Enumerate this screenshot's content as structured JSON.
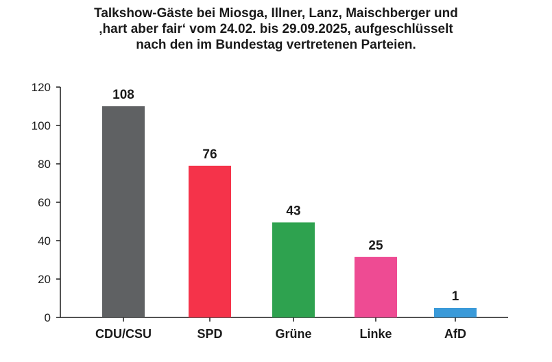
{
  "title_lines": [
    "Talkshow-Gäste bei Miosga, Illner, Lanz, Maischberger und",
    "‚hart aber fair‘ vom 24.02. bis 29.09.2025, aufgeschlüsselt",
    "nach den im Bundestag vertretenen Parteien."
  ],
  "chart_data": {
    "type": "bar",
    "title": "Talkshow-Gäste bei Miosga, Illner, Lanz, Maischberger und ‚hart aber fair‘ vom 24.02. bis 29.09.2025, aufgeschlüsselt nach den im Bundestag vertretenen Parteien.",
    "categories": [
      "CDU/CSU",
      "SPD",
      "Grüne",
      "Linke",
      "AfD"
    ],
    "values": [
      108,
      76,
      43,
      25,
      1
    ],
    "bar_heights": [
      110,
      79,
      49.5,
      31.5,
      5
    ],
    "colors": [
      "#5f6163",
      "#f5334a",
      "#2ea24f",
      "#ee4b93",
      "#3a9ad9"
    ],
    "ylim": [
      0,
      120
    ],
    "yticks": [
      0,
      20,
      40,
      60,
      80,
      100,
      120
    ],
    "xlabel": "",
    "ylabel": "",
    "grid": false,
    "legend": "none"
  }
}
